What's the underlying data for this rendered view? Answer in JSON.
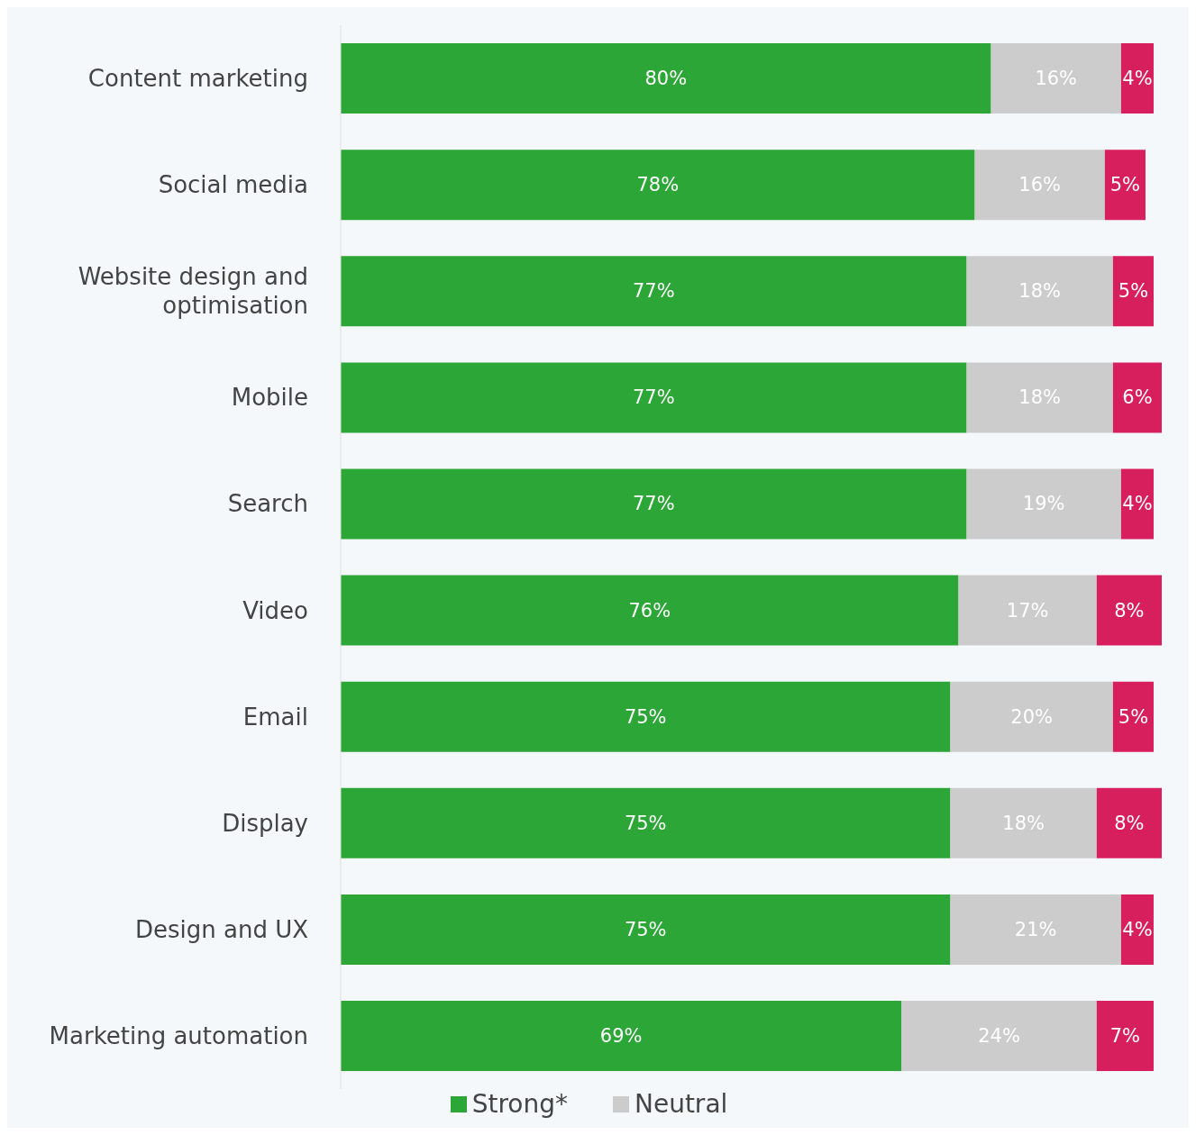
{
  "chart_data": {
    "type": "bar",
    "orientation": "horizontal",
    "stacked": true,
    "legend": "bottom",
    "grid": false,
    "tick_labels": "y",
    "categories": [
      "Content marketing",
      "Social media",
      "Website design and optimisation",
      "Mobile",
      "Search",
      "Video",
      "Email",
      "Display",
      "Design and UX",
      "Marketing automation"
    ],
    "series": [
      {
        "name": "Strong*",
        "color": "#2ca636",
        "values": [
          80,
          78,
          77,
          77,
          77,
          76,
          75,
          75,
          75,
          69
        ],
        "value_labels": [
          "80%",
          "78%",
          "77%",
          "77%",
          "77%",
          "76%",
          "75%",
          "75%",
          "75%",
          "69%"
        ]
      },
      {
        "name": "Neutral",
        "color": "#cccccc",
        "values": [
          16,
          16,
          18,
          18,
          19,
          17,
          20,
          18,
          21,
          24
        ],
        "value_labels": [
          "16%",
          "16%",
          "18%",
          "18%",
          "19%",
          "17%",
          "20%",
          "18%",
          "21%",
          "24%"
        ]
      },
      {
        "color": "#d81f5e",
        "values": [
          4,
          5,
          5,
          6,
          4,
          8,
          5,
          8,
          4,
          7
        ],
        "value_labels": [
          "4%",
          "5%",
          "5%",
          "6%",
          "4%",
          "8%",
          "5%",
          "8%",
          "4%",
          "7%"
        ]
      }
    ]
  }
}
